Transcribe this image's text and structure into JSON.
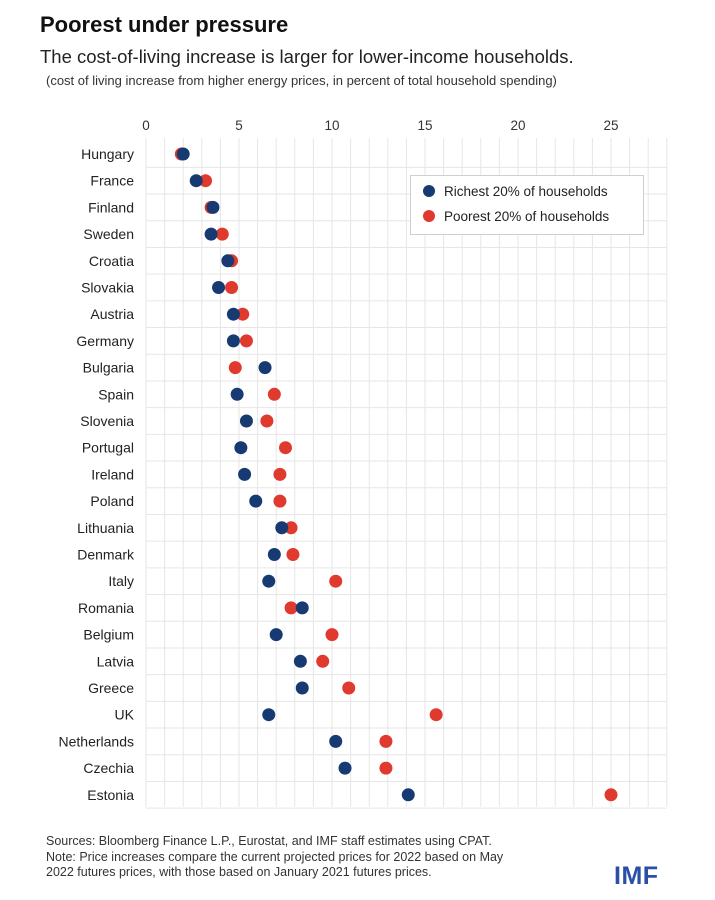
{
  "header": {
    "title": "Poorest under pressure",
    "subtitle": "The cost-of-living increase is larger for lower-income households.",
    "note": "(cost of living increase from higher energy prices, in percent of total household spending)"
  },
  "legend": {
    "rich_label": "Richest 20% of households",
    "poor_label": "Poorest 20% of households"
  },
  "footer": {
    "sources": "Sources: Bloomberg Finance L.P., Eurostat, and IMF staff estimates using CPAT.",
    "note_line1": "Note: Price increases compare the current projected prices for 2022 based on May",
    "note_line2": "2022 futures prices, with those based on January 2021 futures prices.",
    "logo": "IMF"
  },
  "colors": {
    "rich": "#173a72",
    "poor": "#e03a2f",
    "grid": "#e6e6e6",
    "logo": "#2a4fa8"
  },
  "chart_data": {
    "type": "scatter",
    "title": "Poorest under pressure",
    "xlabel": "",
    "ylabel": "",
    "xlim": [
      0,
      28
    ],
    "xticks": [
      0,
      5,
      10,
      15,
      20,
      25
    ],
    "grid": true,
    "legend_position": "top-right",
    "categories": [
      "Hungary",
      "France",
      "Finland",
      "Sweden",
      "Croatia",
      "Slovakia",
      "Austria",
      "Germany",
      "Bulgaria",
      "Spain",
      "Slovenia",
      "Portugal",
      "Ireland",
      "Poland",
      "Lithuania",
      "Denmark",
      "Italy",
      "Romania",
      "Belgium",
      "Latvia",
      "Greece",
      "UK",
      "Netherlands",
      "Czechia",
      "Estonia"
    ],
    "series": [
      {
        "name": "Poorest 20% of households",
        "color": "#e03a2f",
        "values": [
          1.9,
          3.2,
          3.5,
          4.1,
          4.6,
          4.6,
          5.2,
          5.4,
          4.8,
          6.9,
          6.5,
          7.5,
          7.2,
          7.2,
          7.8,
          7.9,
          10.2,
          7.8,
          10.0,
          9.5,
          10.9,
          15.6,
          12.9,
          12.9,
          25.0
        ]
      },
      {
        "name": "Richest 20% of households",
        "color": "#173a72",
        "values": [
          2.0,
          2.7,
          3.6,
          3.5,
          4.4,
          3.9,
          4.7,
          4.7,
          6.4,
          4.9,
          5.4,
          5.1,
          5.3,
          5.9,
          7.3,
          6.9,
          6.6,
          8.4,
          7.0,
          8.3,
          8.4,
          6.6,
          10.2,
          10.7,
          14.1
        ]
      }
    ]
  }
}
